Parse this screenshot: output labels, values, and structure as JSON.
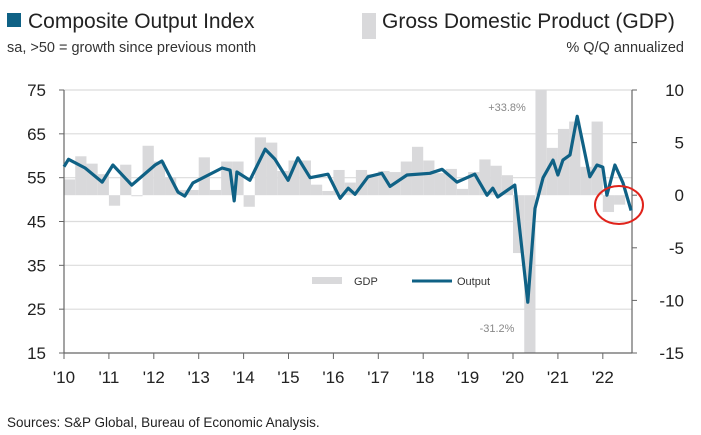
{
  "chart_data": {
    "type": "bar+line",
    "title_left": "Composite Output Index",
    "subtitle_left": "sa, >50 = growth since previous month",
    "title_right": "Gross Domestic Product (GDP)",
    "subtitle_right": "% Q/Q annualized",
    "left_axis": {
      "ylim": [
        15,
        75
      ],
      "ticks": [
        75,
        65,
        55,
        45,
        35,
        25,
        15
      ]
    },
    "right_axis": {
      "ylim": [
        -15,
        10
      ],
      "ticks": [
        10,
        5,
        0,
        -5,
        -10,
        -15
      ]
    },
    "x_ticks": [
      "'10",
      "'11",
      "'12",
      "'13",
      "'14",
      "'15",
      "'16",
      "'17",
      "'18",
      "'19",
      "'20",
      "'21",
      "'22"
    ],
    "xlim": [
      2010,
      2022.65
    ],
    "legend": {
      "gdp": "GDP",
      "output": "Output",
      "placement": "center-bottom"
    },
    "annotations": [
      "+33.8%",
      "-31.2%"
    ],
    "colors": {
      "output": "#0f6185",
      "gdp": "#d9d9db",
      "highlight": "#e0231b",
      "title_square": "#0f6185"
    },
    "series": [
      {
        "name": "GDP",
        "axis": "right",
        "start": 2010.0,
        "step": 0.25,
        "values": [
          1.5,
          3.7,
          3.0,
          2.0,
          -1.0,
          2.9,
          -0.1,
          4.7,
          3.2,
          1.7,
          0.5,
          0.5,
          3.6,
          0.5,
          3.2,
          3.2,
          -1.1,
          5.5,
          5.0,
          2.3,
          3.3,
          3.3,
          1.0,
          0.4,
          2.4,
          1.2,
          2.4,
          2.0,
          2.3,
          2.2,
          3.2,
          4.6,
          3.3,
          2.1,
          2.5,
          0.6,
          2.2,
          3.4,
          2.8,
          1.9,
          -5.5,
          -31.2,
          33.8,
          4.5,
          6.3,
          7.0,
          2.7,
          7.0,
          -1.6,
          -0.9
        ]
      },
      {
        "name": "Output",
        "axis": "left",
        "points": [
          [
            2010.0,
            57.5
          ],
          [
            2010.1,
            59.2
          ],
          [
            2010.47,
            57.2
          ],
          [
            2010.85,
            54
          ],
          [
            2011.09,
            57.9
          ],
          [
            2011.51,
            53.3
          ],
          [
            2012.03,
            57.9
          ],
          [
            2012.18,
            58.8
          ],
          [
            2012.54,
            51.7
          ],
          [
            2012.69,
            50.8
          ],
          [
            2012.87,
            53.8
          ],
          [
            2013.52,
            57.2
          ],
          [
            2013.7,
            56.7
          ],
          [
            2013.79,
            49.7
          ],
          [
            2013.85,
            56.3
          ],
          [
            2014.14,
            54.4
          ],
          [
            2014.48,
            61.5
          ],
          [
            2014.7,
            59.2
          ],
          [
            2014.99,
            54.4
          ],
          [
            2015.21,
            59.5
          ],
          [
            2015.48,
            55
          ],
          [
            2015.88,
            55.8
          ],
          [
            2016.15,
            50.3
          ],
          [
            2016.33,
            52.6
          ],
          [
            2016.48,
            51.2
          ],
          [
            2016.77,
            55.2
          ],
          [
            2017.08,
            56
          ],
          [
            2017.26,
            53
          ],
          [
            2017.64,
            55.6
          ],
          [
            2018.15,
            56
          ],
          [
            2018.42,
            56.9
          ],
          [
            2018.75,
            54
          ],
          [
            2019.15,
            55.8
          ],
          [
            2019.42,
            51
          ],
          [
            2019.55,
            52.6
          ],
          [
            2019.66,
            50.6
          ],
          [
            2020.04,
            53.3
          ],
          [
            2020.33,
            26.6
          ],
          [
            2020.49,
            48
          ],
          [
            2020.67,
            55
          ],
          [
            2020.89,
            59
          ],
          [
            2021.0,
            55.6
          ],
          [
            2021.11,
            59
          ],
          [
            2021.27,
            60.2
          ],
          [
            2021.43,
            69
          ],
          [
            2021.71,
            55.2
          ],
          [
            2021.87,
            57.9
          ],
          [
            2022.0,
            57.4
          ],
          [
            2022.09,
            51
          ],
          [
            2022.27,
            57.9
          ],
          [
            2022.45,
            53.8
          ],
          [
            2022.63,
            47.5
          ]
        ]
      }
    ]
  },
  "footer": {
    "source": "Sources: S&P Global, Bureau of Economic Analysis."
  }
}
